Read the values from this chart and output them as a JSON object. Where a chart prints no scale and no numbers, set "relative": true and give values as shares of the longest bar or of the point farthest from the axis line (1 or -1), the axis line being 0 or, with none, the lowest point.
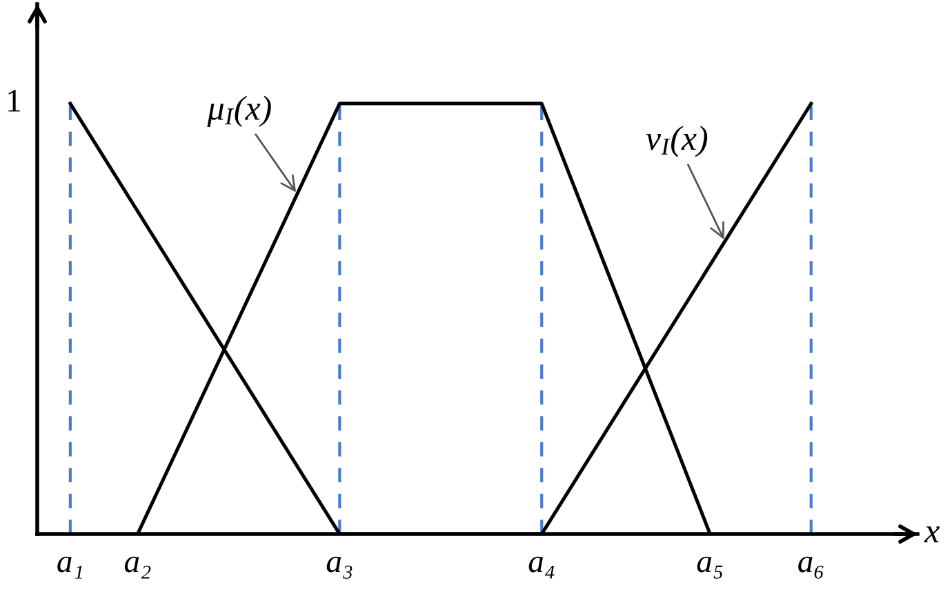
{
  "chart_data": {
    "type": "line",
    "relative": true,
    "xlabel": "x",
    "categories": [
      "a₁",
      null,
      "a₂",
      null,
      null,
      null,
      null,
      null,
      "a₃",
      null,
      null,
      null,
      null,
      null,
      "a₄",
      null,
      null,
      null,
      null,
      "a₅",
      null,
      null,
      "a₆"
    ],
    "annotations": [
      "1"
    ],
    "series": [
      {
        "name": "μ$_{I}$(x)",
        "color": "#000000",
        "x": [
          "a₂",
          "a₃",
          "a₄",
          "a₅"
        ],
        "values": [
          0,
          1,
          1,
          0
        ]
      },
      {
        "name": "ν$_{I}$(x)",
        "color": "#000000",
        "x": [
          "a₁",
          "a₃",
          "a₄",
          "a₆"
        ],
        "values": [
          1,
          0,
          0,
          1
        ]
      }
    ],
    "ref_lines": [
      {
        "axis": "x",
        "value": "a₁",
        "color": "#4a7cc9",
        "line_style": "dashed"
      },
      {
        "axis": "x",
        "value": "a₃",
        "color": "#4a7cc9",
        "line_style": "dashed"
      },
      {
        "axis": "x",
        "value": "a₄",
        "color": "#4a7cc9",
        "line_style": "dashed"
      },
      {
        "axis": "x",
        "value": "a₆",
        "color": "#4a7cc9",
        "line_style": "dashed"
      }
    ]
  }
}
